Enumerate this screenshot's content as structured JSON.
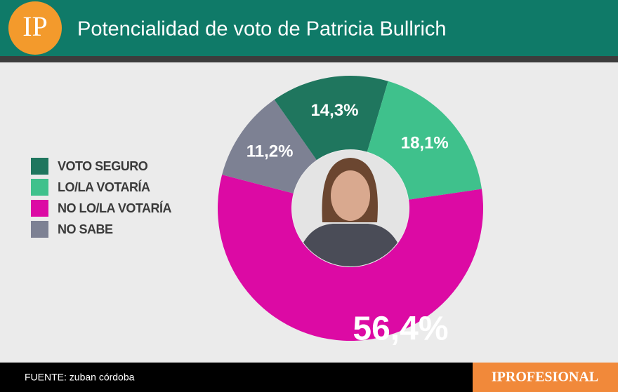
{
  "logo": "IP",
  "source": "FUENTE: zuban córdoba",
  "brand": "IPROFESIONAL",
  "chart_data": {
    "type": "donut",
    "title": "Potencialidad de voto de Patricia Bullrich",
    "categories": [
      "VOTO SEGURO",
      "LO/LA VOTARÍA",
      "NO LO/LA VOTARÍA",
      "NO SABE"
    ],
    "values": [
      14.3,
      18.1,
      56.4,
      11.2
    ],
    "value_labels": [
      "14,3%",
      "18,1%",
      "56,4%",
      "11,2%"
    ],
    "colors": [
      "#1f765e",
      "#3fc18c",
      "#dc0aa4",
      "#7d8193"
    ],
    "legend": "left"
  }
}
